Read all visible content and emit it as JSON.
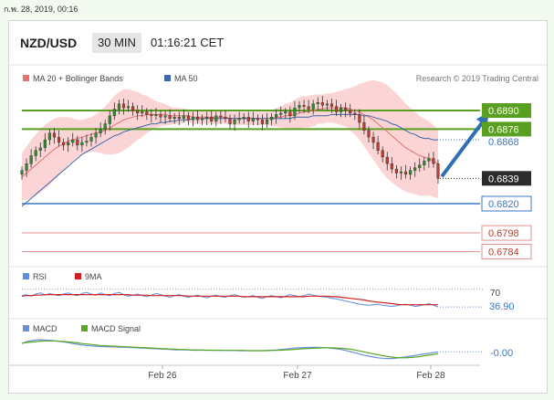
{
  "timestamp": "ก.พ. 28, 2019, 00:16",
  "header": {
    "pair": "NZD/USD",
    "timeframe": "30 MIN",
    "time": "01:16:21 CET"
  },
  "colors": {
    "up": "#2e8b2e",
    "down": "#c0392b",
    "green_level": "#5aa020",
    "blue_level": "#3a78c8",
    "red_level": "#e29090",
    "band_fill": "#fbd5d5",
    "ma20": "#e87070",
    "ma50": "#3e68a8",
    "rsi": "#5b8de0",
    "ma9": "#d02020",
    "macd": "#6a8ed8",
    "signal": "#5aa820",
    "arrow": "#2f6fb8"
  },
  "chart_data": {
    "type": "candlestick",
    "legend": {
      "ma20": "MA 20 + Bollinger Bands",
      "ma50": "MA 50"
    },
    "credit": "Research © 2019 Trading Central",
    "x_ticks": [
      "Feb 26",
      "Feb 27",
      "Feb 28"
    ],
    "levels": [
      {
        "value": 0.689,
        "label": "0.6890",
        "kind": "resistance"
      },
      {
        "value": 0.6876,
        "label": "0.6876",
        "kind": "resistance"
      },
      {
        "value": 0.6868,
        "label": "0.6868",
        "kind": "ma50"
      },
      {
        "value": 0.6839,
        "label": "0.6839",
        "kind": "last"
      },
      {
        "value": 0.682,
        "label": "0.6820",
        "kind": "pivot"
      },
      {
        "value": 0.6798,
        "label": "0.6798",
        "kind": "support"
      },
      {
        "value": 0.6784,
        "label": "0.6784",
        "kind": "support"
      }
    ],
    "closes": [
      0.6845,
      0.685,
      0.6856,
      0.686,
      0.6862,
      0.6868,
      0.6873,
      0.687,
      0.6866,
      0.6864,
      0.6866,
      0.6868,
      0.6864,
      0.6866,
      0.6867,
      0.687,
      0.6873,
      0.6876,
      0.688,
      0.6886,
      0.6891,
      0.6895,
      0.6892,
      0.6893,
      0.689,
      0.6888,
      0.6889,
      0.6887,
      0.6886,
      0.6887,
      0.6885,
      0.6886,
      0.6884,
      0.6885,
      0.6884,
      0.6886,
      0.6883,
      0.6885,
      0.6883,
      0.6884,
      0.6885,
      0.6882,
      0.6886,
      0.6885,
      0.6884,
      0.688,
      0.6883,
      0.6884,
      0.6885,
      0.6882,
      0.6884,
      0.6883,
      0.688,
      0.6883,
      0.6885,
      0.6887,
      0.6888,
      0.6889,
      0.6886,
      0.6892,
      0.6894,
      0.6893,
      0.6891,
      0.6895,
      0.6896,
      0.6894,
      0.6895,
      0.6893,
      0.6889,
      0.6892,
      0.689,
      0.6888,
      0.6887,
      0.6881,
      0.6875,
      0.687,
      0.6866,
      0.686,
      0.6855,
      0.685,
      0.6846,
      0.6843,
      0.6844,
      0.6842,
      0.6845,
      0.6847,
      0.6849,
      0.6852,
      0.6854,
      0.685,
      0.6839
    ],
    "ma20": [
      0.684,
      0.6843,
      0.6846,
      0.6849,
      0.6852,
      0.6855,
      0.6858,
      0.6861,
      0.6863,
      0.6865,
      0.6867,
      0.6868,
      0.6869,
      0.687,
      0.6871,
      0.6872,
      0.6873,
      0.6874,
      0.6875,
      0.6877,
      0.6879,
      0.6881,
      0.6883,
      0.6884,
      0.6885,
      0.6886,
      0.6886,
      0.6887,
      0.6887,
      0.6887,
      0.6887,
      0.6887,
      0.6886,
      0.6886,
      0.6886,
      0.6886,
      0.6886,
      0.6885,
      0.6885,
      0.6885,
      0.6885,
      0.6885,
      0.6885,
      0.6885,
      0.6885,
      0.6884,
      0.6884,
      0.6884,
      0.6884,
      0.6884,
      0.6884,
      0.6884,
      0.6884,
      0.6884,
      0.6884,
      0.6885,
      0.6885,
      0.6886,
      0.6886,
      0.6887,
      0.6888,
      0.6889,
      0.6889,
      0.689,
      0.6891,
      0.6891,
      0.6892,
      0.6892,
      0.6892,
      0.6892,
      0.6892,
      0.6891,
      0.689,
      0.6889,
      0.6887,
      0.6885,
      0.6883,
      0.688,
      0.6877,
      0.6874,
      0.6871,
      0.6868,
      0.6865,
      0.6862,
      0.686,
      0.6858,
      0.6856,
      0.6855,
      0.6854,
      0.6852,
      0.685
    ],
    "ma50": [
      0.6818,
      0.6821,
      0.6824,
      0.6827,
      0.683,
      0.6833,
      0.6836,
      0.6839,
      0.6842,
      0.6845,
      0.6848,
      0.6851,
      0.6854,
      0.6857,
      0.6859,
      0.6861,
      0.6863,
      0.6865,
      0.6867,
      0.6869,
      0.6871,
      0.6872,
      0.6874,
      0.6875,
      0.6876,
      0.6877,
      0.6878,
      0.6879,
      0.688,
      0.688,
      0.6881,
      0.6881,
      0.6882,
      0.6882,
      0.6883,
      0.6883,
      0.6883,
      0.6884,
      0.6884,
      0.6884,
      0.6884,
      0.6884,
      0.6884,
      0.6884,
      0.6884,
      0.6884,
      0.6884,
      0.6884,
      0.6884,
      0.6884,
      0.6884,
      0.6884,
      0.6884,
      0.6884,
      0.6884,
      0.6884,
      0.6884,
      0.6884,
      0.6884,
      0.6885,
      0.6885,
      0.6885,
      0.6885,
      0.6886,
      0.6886,
      0.6886,
      0.6886,
      0.6887,
      0.6887,
      0.6887,
      0.6887,
      0.6887,
      0.6887,
      0.6887,
      0.6886,
      0.6886,
      0.6885,
      0.6884,
      0.6883,
      0.6882,
      0.688,
      0.6879,
      0.6877,
      0.6875,
      0.6873,
      0.6872,
      0.687,
      0.6869,
      0.6869,
      0.6868,
      0.6868
    ],
    "band_width": [
      0.0018,
      0.002,
      0.0022,
      0.0023,
      0.0024,
      0.0024,
      0.0024,
      0.0023,
      0.0022,
      0.002,
      0.0018,
      0.0016,
      0.0014,
      0.0013,
      0.0013,
      0.0013,
      0.0014,
      0.0016,
      0.0018,
      0.002,
      0.0022,
      0.0023,
      0.0023,
      0.0022,
      0.002,
      0.0018,
      0.0016,
      0.0014,
      0.0012,
      0.001,
      0.0009,
      0.0008,
      0.0007,
      0.0006,
      0.0006,
      0.0005,
      0.0005,
      0.0005,
      0.0005,
      0.0005,
      0.0005,
      0.0005,
      0.0005,
      0.0005,
      0.0005,
      0.0005,
      0.0005,
      0.0005,
      0.0005,
      0.0005,
      0.0005,
      0.0005,
      0.0005,
      0.0005,
      0.0006,
      0.0007,
      0.0008,
      0.0009,
      0.001,
      0.0011,
      0.0012,
      0.0012,
      0.0012,
      0.0012,
      0.0011,
      0.0011,
      0.0011,
      0.0011,
      0.0012,
      0.0013,
      0.0014,
      0.0016,
      0.0018,
      0.0021,
      0.0024,
      0.0027,
      0.003,
      0.0032,
      0.0034,
      0.0035,
      0.0035,
      0.0035,
      0.0034,
      0.0033,
      0.0032,
      0.0031,
      0.003,
      0.0029,
      0.0028,
      0.0027,
      0.0026
    ],
    "projection": {
      "to": 0.689
    },
    "rsi": {
      "legend": [
        "RSI",
        "9MA"
      ],
      "overbought": 70,
      "overbought_label": "70",
      "last": 36.9,
      "last_label": "36.90",
      "values": [
        58,
        60,
        57,
        61,
        63,
        59,
        62,
        60,
        58,
        61,
        63,
        60,
        58,
        62,
        64,
        61,
        59,
        63,
        60,
        58,
        62,
        64,
        60,
        57,
        59,
        61,
        58,
        56,
        59,
        62,
        60,
        57,
        55,
        58,
        60,
        57,
        55,
        57,
        59,
        56,
        54,
        57,
        59,
        56,
        55,
        58,
        60,
        57,
        55,
        56,
        58,
        55,
        53,
        56,
        58,
        56,
        54,
        57,
        60,
        58,
        56,
        58,
        61,
        59,
        57,
        56,
        55,
        53,
        52,
        50,
        48,
        46,
        44,
        42,
        41,
        40,
        41,
        42,
        40,
        39,
        38,
        39,
        41,
        42,
        40,
        38,
        39,
        41,
        43,
        40,
        36.9
      ],
      "ma": [
        57,
        58,
        58,
        59,
        59,
        60,
        60,
        60,
        60,
        60,
        60,
        60,
        60,
        60,
        60,
        60,
        60,
        60,
        60,
        60,
        60,
        60,
        60,
        60,
        59,
        59,
        59,
        59,
        58,
        58,
        58,
        58,
        58,
        58,
        58,
        58,
        57,
        57,
        57,
        57,
        57,
        57,
        57,
        57,
        57,
        57,
        57,
        57,
        56,
        56,
        56,
        56,
        56,
        56,
        56,
        56,
        56,
        56,
        56,
        56,
        56,
        56,
        57,
        57,
        57,
        57,
        57,
        56,
        56,
        55,
        54,
        53,
        52,
        51,
        50,
        48,
        47,
        46,
        45,
        44,
        43,
        42,
        41,
        41,
        41,
        41,
        41,
        41,
        41,
        41,
        41
      ]
    },
    "macd": {
      "legend": [
        "MACD",
        "MACD Signal"
      ],
      "last_label": "-0.00",
      "values": [
        0.3,
        0.38,
        0.42,
        0.45,
        0.46,
        0.45,
        0.44,
        0.42,
        0.4,
        0.37,
        0.34,
        0.3,
        0.27,
        0.24,
        0.22,
        0.2,
        0.19,
        0.18,
        0.17,
        0.16,
        0.16,
        0.15,
        0.15,
        0.14,
        0.13,
        0.12,
        0.11,
        0.1,
        0.09,
        0.08,
        0.07,
        0.06,
        0.05,
        0.04,
        0.04,
        0.03,
        0.03,
        0.02,
        0.02,
        0.02,
        0.02,
        0.02,
        0.01,
        0.01,
        0.01,
        0.01,
        0.01,
        0.0,
        0.0,
        0.0,
        0.0,
        0.0,
        0.0,
        0.01,
        0.02,
        0.03,
        0.05,
        0.07,
        0.09,
        0.11,
        0.12,
        0.13,
        0.14,
        0.14,
        0.14,
        0.13,
        0.12,
        0.1,
        0.08,
        0.05,
        0.01,
        -0.04,
        -0.09,
        -0.14,
        -0.19,
        -0.23,
        -0.27,
        -0.3,
        -0.32,
        -0.33,
        -0.33,
        -0.31,
        -0.29,
        -0.26,
        -0.23,
        -0.2,
        -0.17,
        -0.14,
        -0.11,
        -0.08,
        -0.05
      ],
      "signal": [
        0.32,
        0.34,
        0.36,
        0.38,
        0.4,
        0.41,
        0.41,
        0.41,
        0.4,
        0.39,
        0.37,
        0.35,
        0.33,
        0.3,
        0.28,
        0.26,
        0.24,
        0.22,
        0.21,
        0.2,
        0.19,
        0.18,
        0.17,
        0.16,
        0.15,
        0.14,
        0.13,
        0.12,
        0.11,
        0.1,
        0.09,
        0.08,
        0.07,
        0.06,
        0.05,
        0.05,
        0.04,
        0.03,
        0.03,
        0.03,
        0.02,
        0.02,
        0.02,
        0.02,
        0.01,
        0.01,
        0.01,
        0.01,
        0.01,
        0.0,
        0.0,
        0.0,
        0.0,
        0.0,
        0.01,
        0.01,
        0.02,
        0.03,
        0.04,
        0.05,
        0.07,
        0.08,
        0.09,
        0.1,
        0.11,
        0.12,
        0.12,
        0.12,
        0.11,
        0.1,
        0.08,
        0.06,
        0.03,
        -0.01,
        -0.05,
        -0.09,
        -0.13,
        -0.17,
        -0.21,
        -0.24,
        -0.27,
        -0.29,
        -0.3,
        -0.3,
        -0.29,
        -0.27,
        -0.25,
        -0.22,
        -0.19,
        -0.16,
        -0.13
      ]
    }
  }
}
